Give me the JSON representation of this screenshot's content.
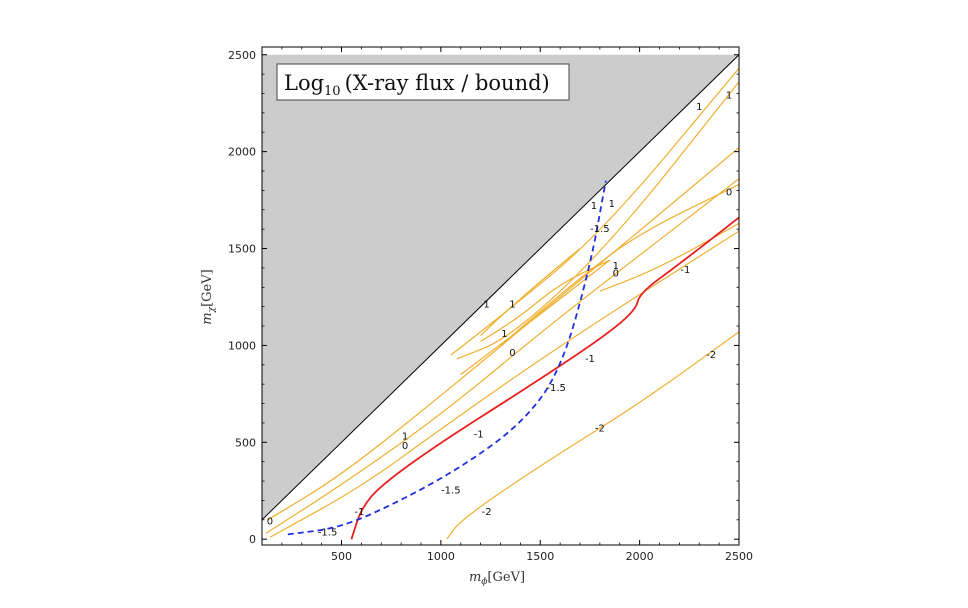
{
  "chart_data": {
    "type": "contour",
    "title": "Log10 (X-ray flux / bound)",
    "title_main": "Log",
    "title_sub": "10",
    "title_rest": "(X-ray flux / bound)",
    "xlabel_main": "m",
    "xlabel_sub": "ϕ",
    "xlabel_unit": "[GeV]",
    "ylabel_main": "m",
    "ylabel_sub": "χ",
    "ylabel_unit": "[GeV]",
    "xlim": [
      100,
      2500
    ],
    "ylim": [
      -30,
      2540
    ],
    "xticks": [
      500,
      1000,
      1500,
      2000,
      2500
    ],
    "yticks": [
      0,
      500,
      1000,
      1500,
      2000,
      2500
    ],
    "xtick_labels": [
      "500",
      "1000",
      "1500",
      "2000",
      "2500"
    ],
    "ytick_labels": [
      "0",
      "500",
      "1000",
      "1500",
      "2000",
      "2500"
    ],
    "excluded_region": {
      "boundary": "m_chi = m_phi",
      "color": "#cccccc",
      "polygon": [
        [
          100,
          100
        ],
        [
          2500,
          2500
        ],
        [
          100,
          2500
        ]
      ]
    },
    "series": [
      {
        "level": "1",
        "color": "#f0b030",
        "points": [
          [
            130,
            100
          ],
          [
            500,
            330
          ],
          [
            1000,
            740
          ],
          [
            1600,
            1250
          ],
          [
            2500,
            2020
          ]
        ]
      },
      {
        "level": "0",
        "color": "#f0b030",
        "points": [
          [
            120,
            30
          ],
          [
            500,
            280
          ],
          [
            1000,
            640
          ],
          [
            1600,
            1150
          ],
          [
            2500,
            1860
          ]
        ]
      },
      {
        "level": "-1",
        "color": "#f0b030",
        "points": [
          [
            140,
            10
          ],
          [
            600,
            270
          ],
          [
            1000,
            570
          ],
          [
            1600,
            1000
          ],
          [
            2500,
            1590
          ]
        ]
      },
      {
        "level": "-2",
        "color": "#f0b030",
        "points": [
          [
            1030,
            0
          ],
          [
            1100,
            100
          ],
          [
            1500,
            380
          ],
          [
            2000,
            700
          ],
          [
            2500,
            1070
          ]
        ]
      },
      {
        "level": "1",
        "color": "#f0b030",
        "points": [
          [
            1050,
            950
          ],
          [
            1300,
            1150
          ],
          [
            1800,
            1570
          ],
          [
            2500,
            2430
          ]
        ]
      },
      {
        "level": "1",
        "color": "#f0b030",
        "points": [
          [
            1080,
            930
          ],
          [
            1350,
            1040
          ],
          [
            1850,
            1520
          ],
          [
            2500,
            2360
          ]
        ]
      },
      {
        "level": "-1",
        "color": "#f0b030",
        "points": [
          [
            1100,
            850
          ],
          [
            1500,
            1160
          ],
          [
            1850,
            1440
          ]
        ]
      },
      {
        "level": "-1",
        "color": "#f0b030",
        "points": [
          [
            1200,
            1050
          ],
          [
            1300,
            1150
          ],
          [
            1500,
            1330
          ],
          [
            1700,
            1500
          ]
        ]
      },
      {
        "level": "-1",
        "color": "#f0b030",
        "points": [
          [
            1200,
            1020
          ],
          [
            1400,
            1150
          ],
          [
            1600,
            1320
          ],
          [
            1850,
            1440
          ]
        ]
      },
      {
        "level": "0",
        "color": "#f0b030",
        "points": [
          [
            1300,
            1000
          ],
          [
            1700,
            1350
          ],
          [
            2000,
            1580
          ],
          [
            2500,
            1830
          ]
        ]
      },
      {
        "level": "-1",
        "color": "#f0b030",
        "points": [
          [
            1800,
            1280
          ],
          [
            2100,
            1400
          ],
          [
            2500,
            1630
          ]
        ]
      },
      {
        "level": "0",
        "color": "#e82020",
        "points": [
          [
            550,
            0
          ],
          [
            600,
            160
          ],
          [
            700,
            280
          ],
          [
            1000,
            500
          ],
          [
            1400,
            760
          ],
          [
            1800,
            1030
          ],
          [
            1980,
            1180
          ],
          [
            2000,
            1270
          ],
          [
            2200,
            1420
          ],
          [
            2500,
            1660
          ]
        ]
      },
      {
        "level": "-1.5",
        "color": "#2030e0",
        "dashed": true,
        "points": [
          [
            230,
            25
          ],
          [
            500,
            60
          ],
          [
            800,
            200
          ],
          [
            1100,
            370
          ],
          [
            1400,
            590
          ],
          [
            1600,
            860
          ],
          [
            1750,
            1400
          ],
          [
            1830,
            1850
          ]
        ]
      }
    ],
    "contour_labels": [
      {
        "text": "1",
        "x": 2300,
        "y": 2230
      },
      {
        "text": "1",
        "x": 2450,
        "y": 2290
      },
      {
        "text": "1",
        "x": 1770,
        "y": 1720
      },
      {
        "text": "1",
        "x": 1860,
        "y": 1730
      },
      {
        "text": "-1.5",
        "x": 1800,
        "y": 1600
      },
      {
        "text": "0",
        "x": 2450,
        "y": 1790
      },
      {
        "text": "1",
        "x": 1880,
        "y": 1410
      },
      {
        "text": "0",
        "x": 1880,
        "y": 1370
      },
      {
        "text": "-1",
        "x": 2230,
        "y": 1390
      },
      {
        "text": "1",
        "x": 1230,
        "y": 1210
      },
      {
        "text": "1",
        "x": 1360,
        "y": 1210
      },
      {
        "text": "1",
        "x": 1320,
        "y": 1060
      },
      {
        "text": "0",
        "x": 1360,
        "y": 960
      },
      {
        "text": "-1",
        "x": 1750,
        "y": 930
      },
      {
        "text": "-1.5",
        "x": 1580,
        "y": 780
      },
      {
        "text": "-2",
        "x": 2360,
        "y": 950
      },
      {
        "text": "-2",
        "x": 1800,
        "y": 570
      },
      {
        "text": "1",
        "x": 820,
        "y": 530
      },
      {
        "text": "0",
        "x": 820,
        "y": 480
      },
      {
        "text": "-1",
        "x": 1190,
        "y": 540
      },
      {
        "text": "-1.5",
        "x": 1050,
        "y": 250
      },
      {
        "text": "-1",
        "x": 590,
        "y": 140
      },
      {
        "text": "-2",
        "x": 1230,
        "y": 140
      },
      {
        "text": "-1.5",
        "x": 430,
        "y": 35
      },
      {
        "text": "0",
        "x": 140,
        "y": 90
      }
    ]
  }
}
